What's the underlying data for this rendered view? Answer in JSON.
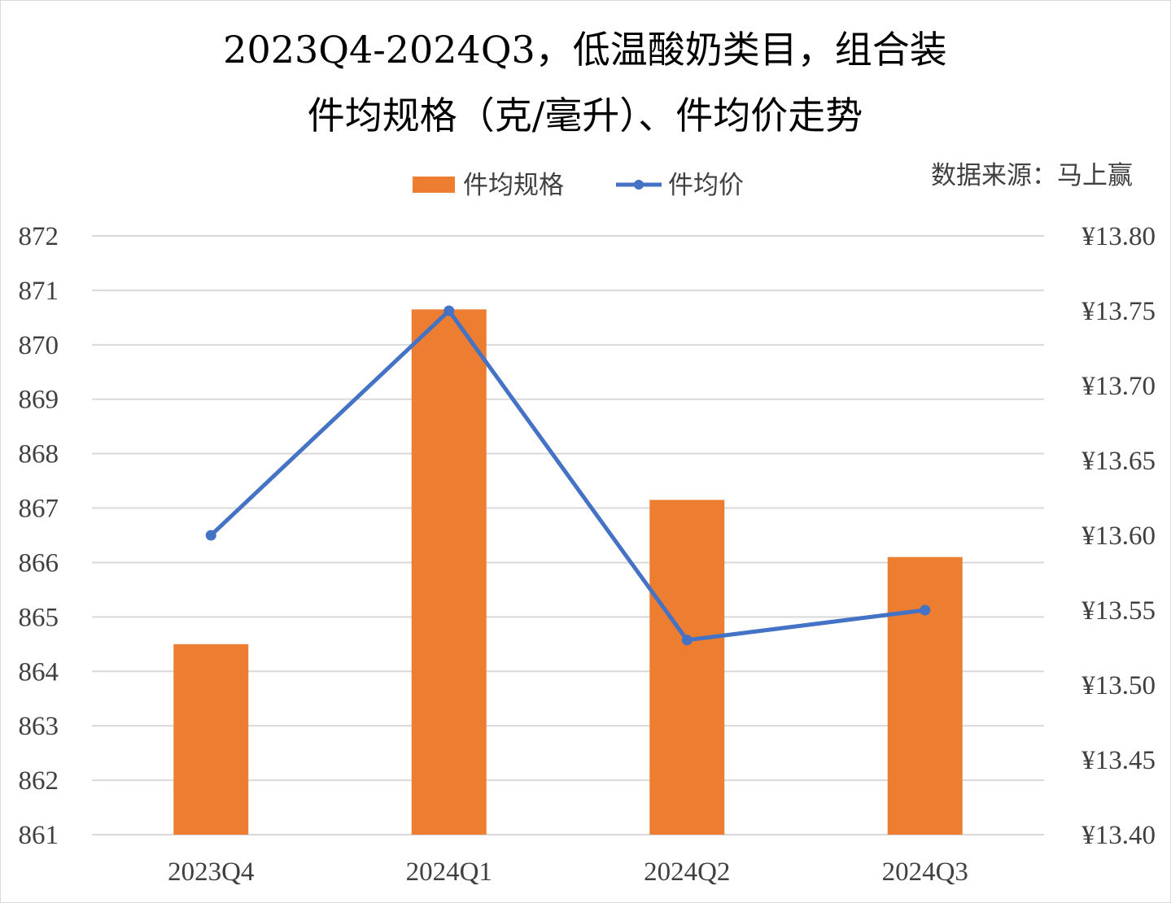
{
  "chart_data": {
    "type": "bar",
    "title_line1": "2023Q4-2024Q3，低温酸奶类目，组合装",
    "title_line2": "件均规格（克/毫升）、件均价走势",
    "source": "数据来源：马上赢",
    "categories": [
      "2023Q4",
      "2024Q1",
      "2024Q2",
      "2024Q3"
    ],
    "series": [
      {
        "name": "件均规格",
        "type": "bar",
        "axis": "left",
        "color": "#ED7D31",
        "values": [
          864.5,
          870.65,
          867.15,
          866.1
        ]
      },
      {
        "name": "件均价",
        "type": "line",
        "axis": "right",
        "color": "#4472C4",
        "values": [
          13.6,
          13.75,
          13.53,
          13.55
        ]
      }
    ],
    "y_left": {
      "min": 861,
      "max": 872,
      "ticks": [
        "861",
        "862",
        "863",
        "864",
        "865",
        "866",
        "867",
        "868",
        "869",
        "870",
        "871",
        "872"
      ]
    },
    "y_right": {
      "min": 13.4,
      "max": 13.8,
      "ticks": [
        "¥13.40",
        "¥13.45",
        "¥13.50",
        "¥13.55",
        "¥13.60",
        "¥13.65",
        "¥13.70",
        "¥13.75",
        "¥13.80"
      ]
    },
    "grid": true,
    "legend_position": "top"
  }
}
